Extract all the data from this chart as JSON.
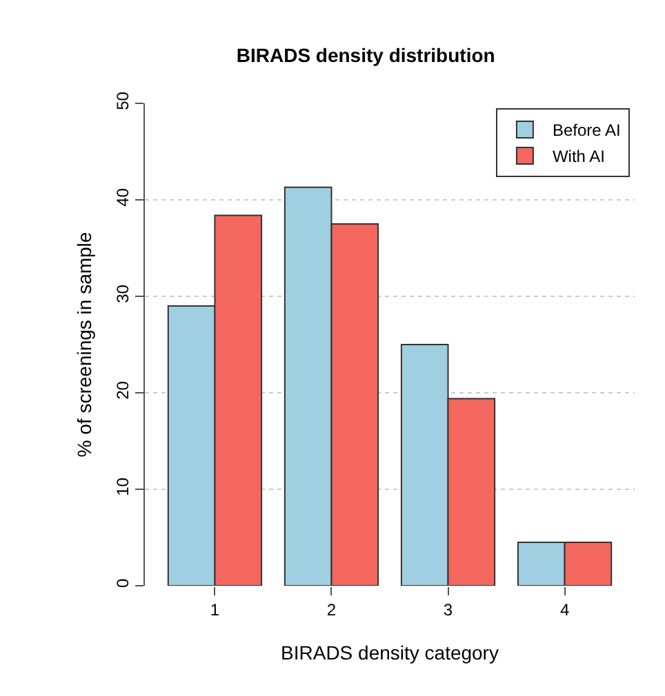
{
  "chart_data": {
    "type": "bar",
    "title": "BIRADS density distribution",
    "xlabel": "BIRADS density category",
    "ylabel": "% of screenings in sample",
    "categories": [
      "1",
      "2",
      "3",
      "4"
    ],
    "series": [
      {
        "name": "Before AI",
        "color": "#9fcfe0",
        "values": [
          29.0,
          41.3,
          25.0,
          4.5
        ]
      },
      {
        "name": "With AI",
        "color": "#f4675f",
        "values": [
          38.4,
          37.5,
          19.4,
          4.5
        ]
      }
    ],
    "ylim": [
      0,
      50
    ],
    "yticks": [
      0,
      10,
      20,
      30,
      40,
      50
    ],
    "grid": "y",
    "legend": "top right"
  }
}
